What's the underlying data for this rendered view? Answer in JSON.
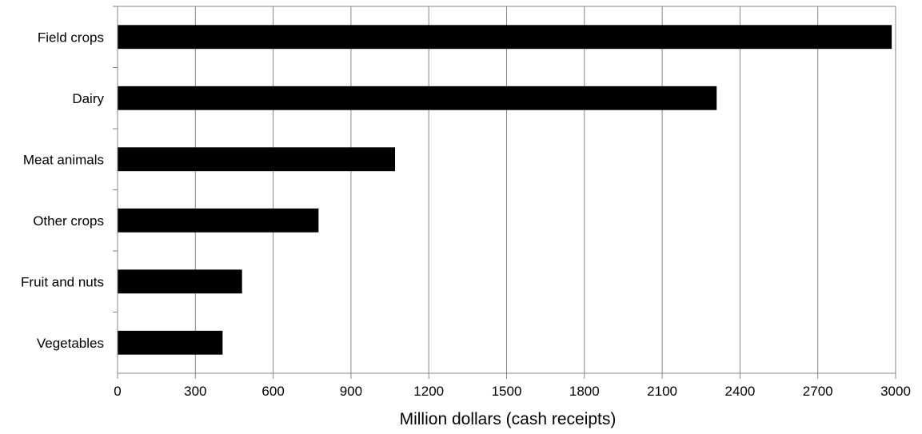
{
  "chart_data": {
    "type": "bar",
    "orientation": "horizontal",
    "categories": [
      "Field crops",
      "Dairy",
      "Meat animals",
      "Other crops",
      "Fruit and nuts",
      "Vegetables"
    ],
    "values": [
      2985,
      2310,
      1070,
      775,
      480,
      405
    ],
    "title": "",
    "xlabel": "Million dollars (cash receipts)",
    "ylabel": "",
    "xlim": [
      0,
      3000
    ],
    "x_ticks": [
      "0",
      "300",
      "600",
      "900",
      "1200",
      "1500",
      "1800",
      "2100",
      "2400",
      "2700",
      "3000"
    ],
    "grid": "vertical",
    "legend": "none",
    "colors": {
      "bar": "#000000",
      "grid": "#868686",
      "axis": "#868686",
      "text": "#000000"
    }
  }
}
